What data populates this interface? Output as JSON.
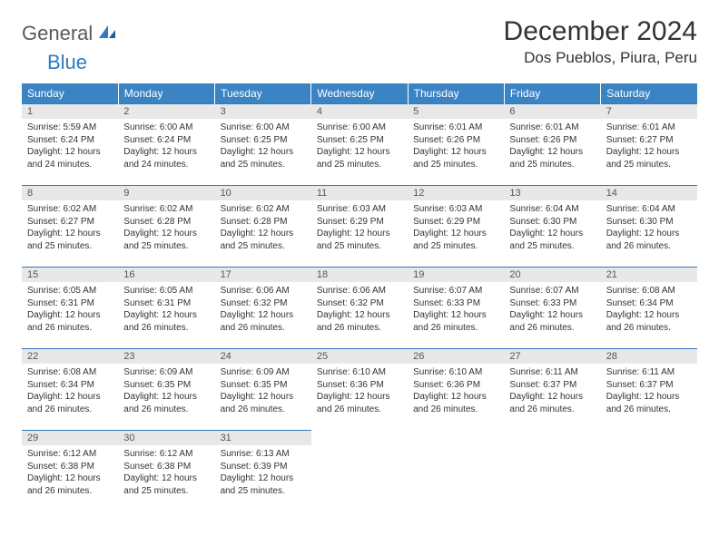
{
  "logo": {
    "text_gray": "General",
    "text_blue": "Blue"
  },
  "title": "December 2024",
  "location": "Dos Pueblos, Piura, Peru",
  "colors": {
    "header_bg": "#3b84c4",
    "header_text": "#ffffff",
    "daynum_bg": "#e8e8e8",
    "border": "#2f7bbf",
    "logo_gray": "#5a5a5a",
    "logo_blue": "#2f7bbf"
  },
  "weekdays": [
    "Sunday",
    "Monday",
    "Tuesday",
    "Wednesday",
    "Thursday",
    "Friday",
    "Saturday"
  ],
  "weeks": [
    [
      {
        "num": "1",
        "sunrise": "Sunrise: 5:59 AM",
        "sunset": "Sunset: 6:24 PM",
        "daylight": "Daylight: 12 hours and 24 minutes."
      },
      {
        "num": "2",
        "sunrise": "Sunrise: 6:00 AM",
        "sunset": "Sunset: 6:24 PM",
        "daylight": "Daylight: 12 hours and 24 minutes."
      },
      {
        "num": "3",
        "sunrise": "Sunrise: 6:00 AM",
        "sunset": "Sunset: 6:25 PM",
        "daylight": "Daylight: 12 hours and 25 minutes."
      },
      {
        "num": "4",
        "sunrise": "Sunrise: 6:00 AM",
        "sunset": "Sunset: 6:25 PM",
        "daylight": "Daylight: 12 hours and 25 minutes."
      },
      {
        "num": "5",
        "sunrise": "Sunrise: 6:01 AM",
        "sunset": "Sunset: 6:26 PM",
        "daylight": "Daylight: 12 hours and 25 minutes."
      },
      {
        "num": "6",
        "sunrise": "Sunrise: 6:01 AM",
        "sunset": "Sunset: 6:26 PM",
        "daylight": "Daylight: 12 hours and 25 minutes."
      },
      {
        "num": "7",
        "sunrise": "Sunrise: 6:01 AM",
        "sunset": "Sunset: 6:27 PM",
        "daylight": "Daylight: 12 hours and 25 minutes."
      }
    ],
    [
      {
        "num": "8",
        "sunrise": "Sunrise: 6:02 AM",
        "sunset": "Sunset: 6:27 PM",
        "daylight": "Daylight: 12 hours and 25 minutes."
      },
      {
        "num": "9",
        "sunrise": "Sunrise: 6:02 AM",
        "sunset": "Sunset: 6:28 PM",
        "daylight": "Daylight: 12 hours and 25 minutes."
      },
      {
        "num": "10",
        "sunrise": "Sunrise: 6:02 AM",
        "sunset": "Sunset: 6:28 PM",
        "daylight": "Daylight: 12 hours and 25 minutes."
      },
      {
        "num": "11",
        "sunrise": "Sunrise: 6:03 AM",
        "sunset": "Sunset: 6:29 PM",
        "daylight": "Daylight: 12 hours and 25 minutes."
      },
      {
        "num": "12",
        "sunrise": "Sunrise: 6:03 AM",
        "sunset": "Sunset: 6:29 PM",
        "daylight": "Daylight: 12 hours and 25 minutes."
      },
      {
        "num": "13",
        "sunrise": "Sunrise: 6:04 AM",
        "sunset": "Sunset: 6:30 PM",
        "daylight": "Daylight: 12 hours and 25 minutes."
      },
      {
        "num": "14",
        "sunrise": "Sunrise: 6:04 AM",
        "sunset": "Sunset: 6:30 PM",
        "daylight": "Daylight: 12 hours and 26 minutes."
      }
    ],
    [
      {
        "num": "15",
        "sunrise": "Sunrise: 6:05 AM",
        "sunset": "Sunset: 6:31 PM",
        "daylight": "Daylight: 12 hours and 26 minutes."
      },
      {
        "num": "16",
        "sunrise": "Sunrise: 6:05 AM",
        "sunset": "Sunset: 6:31 PM",
        "daylight": "Daylight: 12 hours and 26 minutes."
      },
      {
        "num": "17",
        "sunrise": "Sunrise: 6:06 AM",
        "sunset": "Sunset: 6:32 PM",
        "daylight": "Daylight: 12 hours and 26 minutes."
      },
      {
        "num": "18",
        "sunrise": "Sunrise: 6:06 AM",
        "sunset": "Sunset: 6:32 PM",
        "daylight": "Daylight: 12 hours and 26 minutes."
      },
      {
        "num": "19",
        "sunrise": "Sunrise: 6:07 AM",
        "sunset": "Sunset: 6:33 PM",
        "daylight": "Daylight: 12 hours and 26 minutes."
      },
      {
        "num": "20",
        "sunrise": "Sunrise: 6:07 AM",
        "sunset": "Sunset: 6:33 PM",
        "daylight": "Daylight: 12 hours and 26 minutes."
      },
      {
        "num": "21",
        "sunrise": "Sunrise: 6:08 AM",
        "sunset": "Sunset: 6:34 PM",
        "daylight": "Daylight: 12 hours and 26 minutes."
      }
    ],
    [
      {
        "num": "22",
        "sunrise": "Sunrise: 6:08 AM",
        "sunset": "Sunset: 6:34 PM",
        "daylight": "Daylight: 12 hours and 26 minutes."
      },
      {
        "num": "23",
        "sunrise": "Sunrise: 6:09 AM",
        "sunset": "Sunset: 6:35 PM",
        "daylight": "Daylight: 12 hours and 26 minutes."
      },
      {
        "num": "24",
        "sunrise": "Sunrise: 6:09 AM",
        "sunset": "Sunset: 6:35 PM",
        "daylight": "Daylight: 12 hours and 26 minutes."
      },
      {
        "num": "25",
        "sunrise": "Sunrise: 6:10 AM",
        "sunset": "Sunset: 6:36 PM",
        "daylight": "Daylight: 12 hours and 26 minutes."
      },
      {
        "num": "26",
        "sunrise": "Sunrise: 6:10 AM",
        "sunset": "Sunset: 6:36 PM",
        "daylight": "Daylight: 12 hours and 26 minutes."
      },
      {
        "num": "27",
        "sunrise": "Sunrise: 6:11 AM",
        "sunset": "Sunset: 6:37 PM",
        "daylight": "Daylight: 12 hours and 26 minutes."
      },
      {
        "num": "28",
        "sunrise": "Sunrise: 6:11 AM",
        "sunset": "Sunset: 6:37 PM",
        "daylight": "Daylight: 12 hours and 26 minutes."
      }
    ],
    [
      {
        "num": "29",
        "sunrise": "Sunrise: 6:12 AM",
        "sunset": "Sunset: 6:38 PM",
        "daylight": "Daylight: 12 hours and 26 minutes."
      },
      {
        "num": "30",
        "sunrise": "Sunrise: 6:12 AM",
        "sunset": "Sunset: 6:38 PM",
        "daylight": "Daylight: 12 hours and 25 minutes."
      },
      {
        "num": "31",
        "sunrise": "Sunrise: 6:13 AM",
        "sunset": "Sunset: 6:39 PM",
        "daylight": "Daylight: 12 hours and 25 minutes."
      },
      null,
      null,
      null,
      null
    ]
  ]
}
